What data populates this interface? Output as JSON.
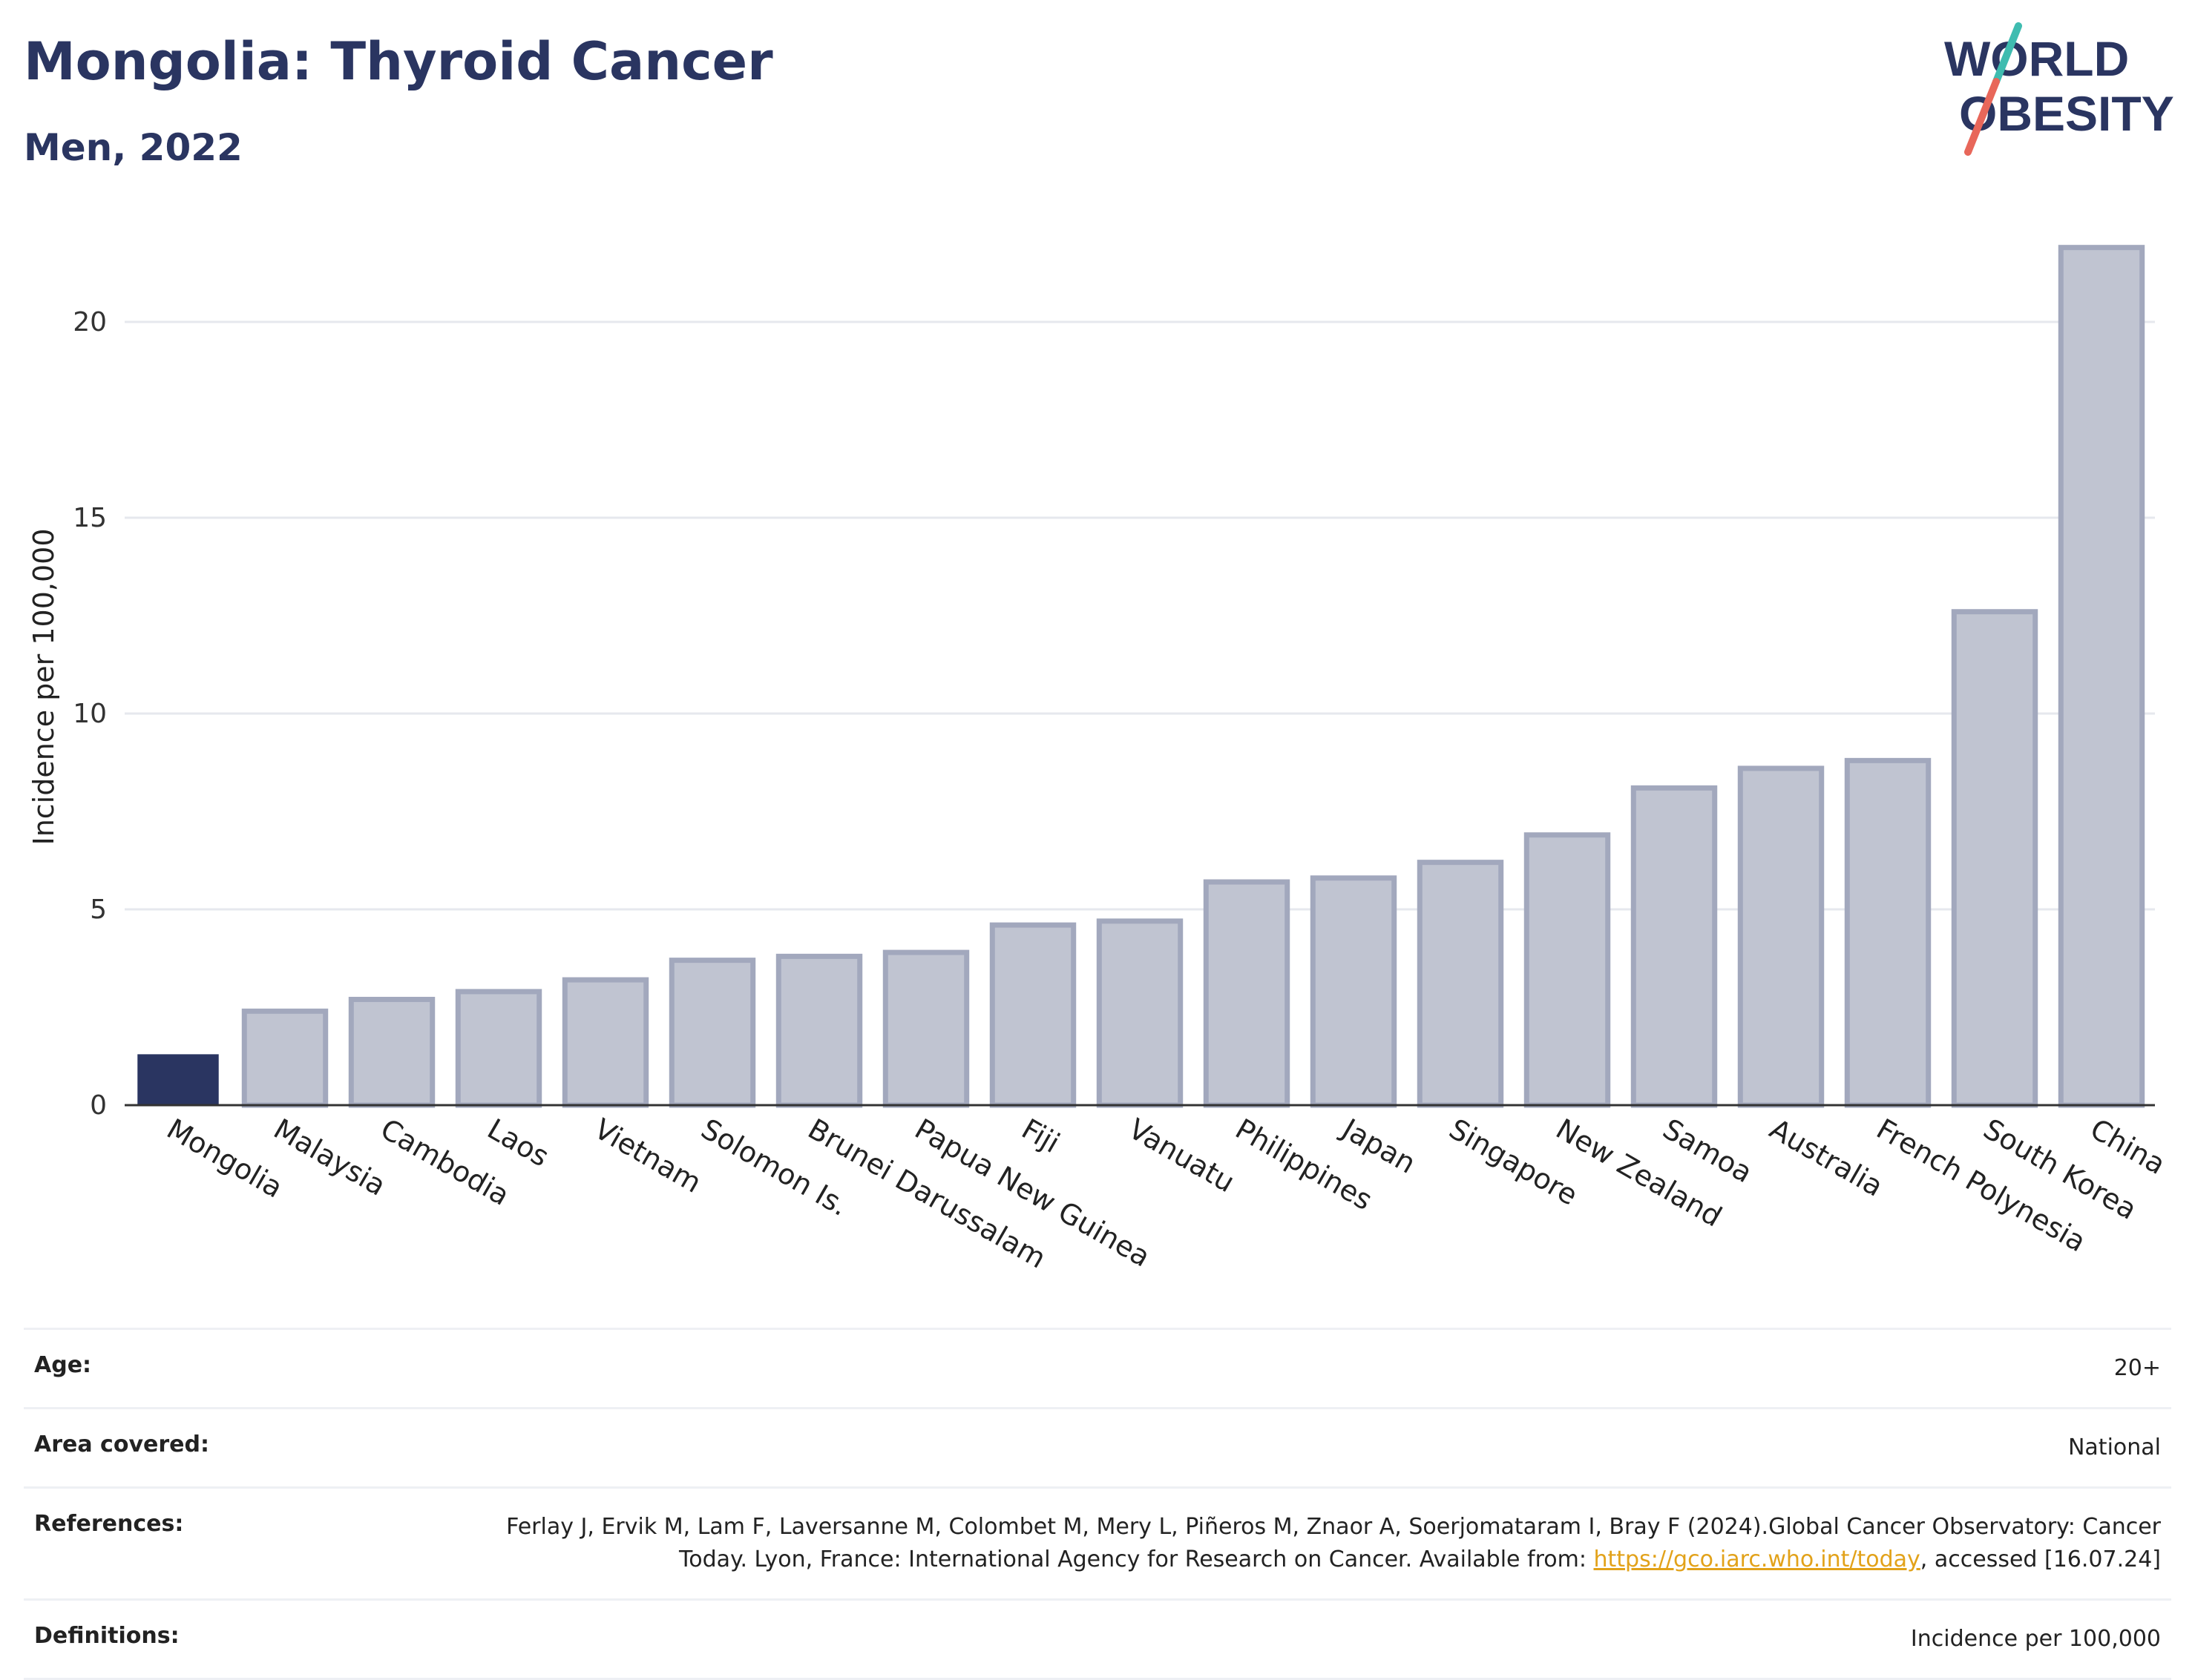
{
  "header": {
    "title": "Mongolia: Thyroid Cancer",
    "subtitle": "Men, 2022"
  },
  "logo": {
    "line1": "WORLD",
    "line2": "OBESITY",
    "colors": {
      "text": "#2a3561",
      "slash_top": "#3fbcb0",
      "slash_bottom": "#e8675a"
    }
  },
  "chart_data": {
    "type": "bar",
    "title": "Mongolia: Thyroid Cancer",
    "subtitle": "Men, 2022",
    "xlabel": "",
    "ylabel": "Incidence per 100,000",
    "ylim": [
      0,
      22.5
    ],
    "yticks": [
      0,
      5,
      10,
      15,
      20
    ],
    "grid": true,
    "categories": [
      "Mongolia",
      "Malaysia",
      "Cambodia",
      "Laos",
      "Vietnam",
      "Solomon Is.",
      "Brunei Darussalam",
      "Papua New Guinea",
      "Fiji",
      "Vanuatu",
      "Philippines",
      "Japan",
      "Singapore",
      "New Zealand",
      "Samoa",
      "Australia",
      "French Polynesia",
      "South Korea",
      "China"
    ],
    "values": [
      1.3,
      2.4,
      2.7,
      2.9,
      3.2,
      3.7,
      3.8,
      3.9,
      4.6,
      4.7,
      5.7,
      5.8,
      6.2,
      6.9,
      8.1,
      8.6,
      8.8,
      12.6,
      21.9
    ],
    "highlight": "Mongolia",
    "colors": {
      "highlight": "#2a3561",
      "other_fill": "#c0c4d1",
      "other_stroke": "#a2a8bd",
      "grid": "#e6e8ee",
      "axis": "#333333"
    }
  },
  "info": [
    {
      "label": "Age:",
      "value": "20+"
    },
    {
      "label": "Area covered:",
      "value": "National"
    },
    {
      "label": "References:",
      "value_pre": "Ferlay J, Ervik M, Lam F, Laversanne M, Colombet M, Mery L, Piñeros M, Znaor A, Soerjomataram I, Bray F (2024).Global Cancer Observatory: Cancer Today. Lyon, France: International Agency for Research on Cancer. Available from: ",
      "link": "https://gco.iarc.who.int/today",
      "value_post": ", accessed [16.07.24]"
    },
    {
      "label": "Definitions:",
      "value": "Incidence per 100,000"
    }
  ]
}
